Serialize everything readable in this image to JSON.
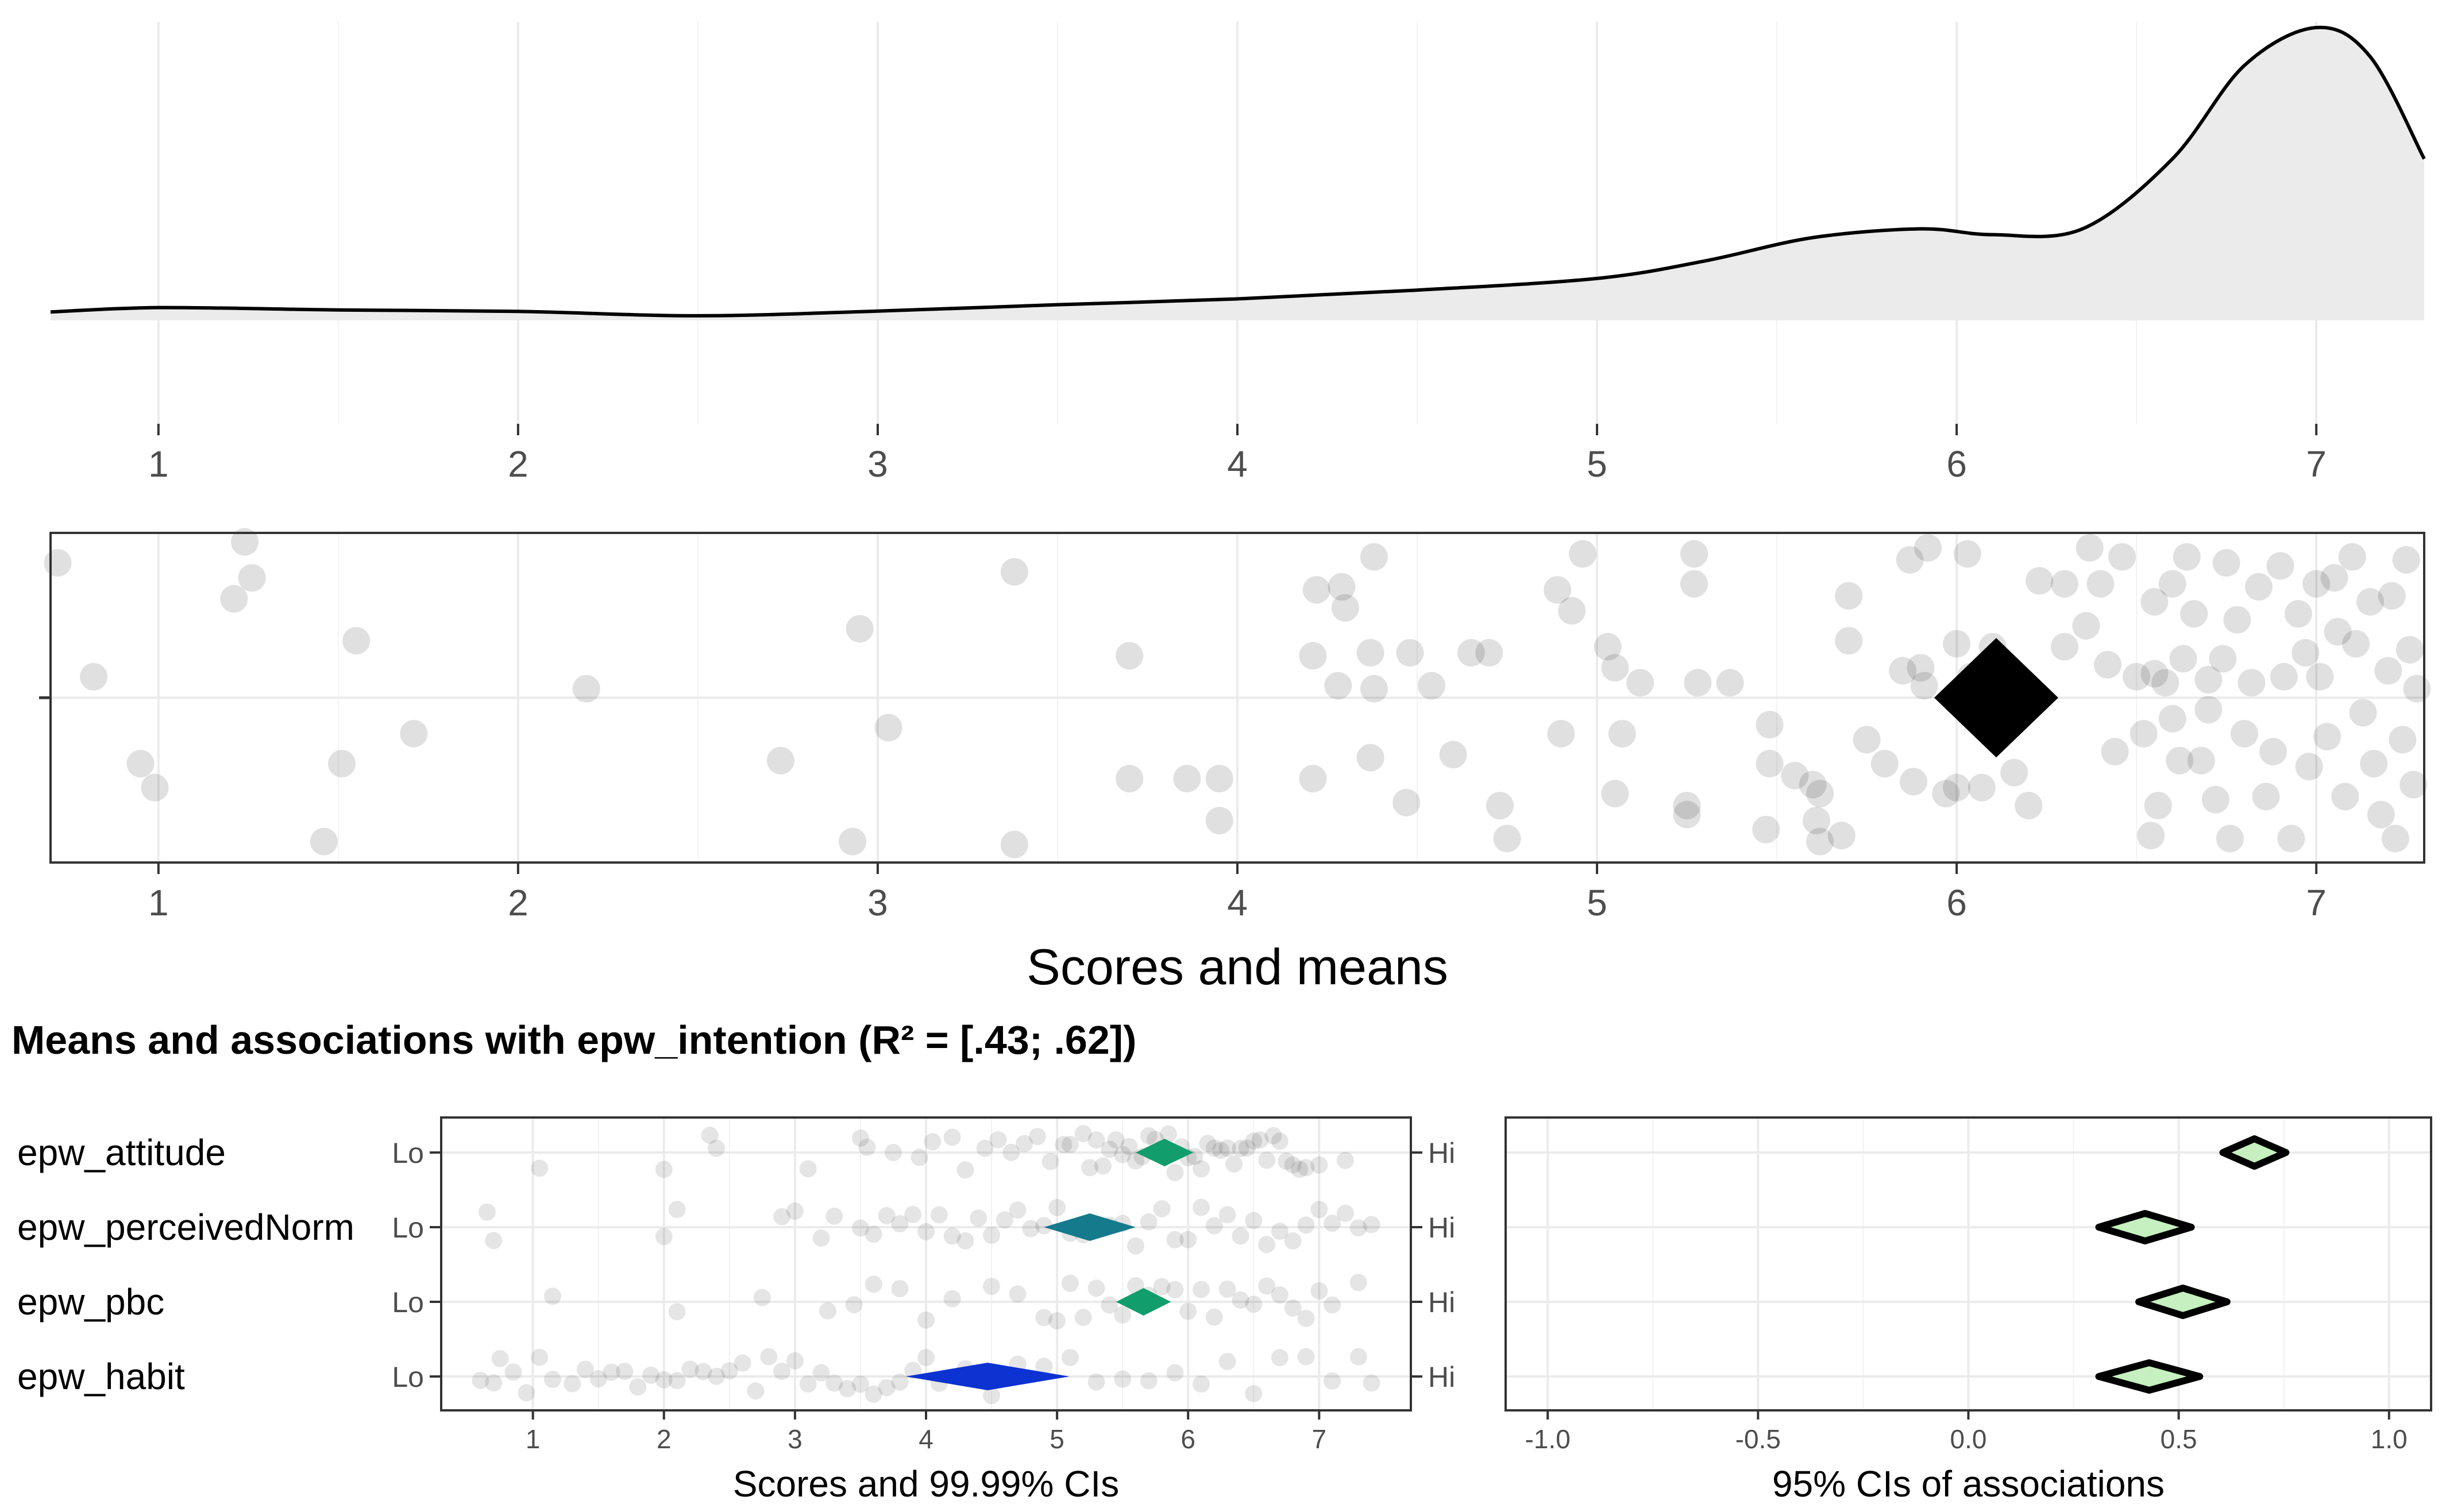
{
  "chart_data": [
    {
      "type": "area",
      "panel": "density",
      "xlim": [
        0.7,
        7.3
      ],
      "x_ticks": [
        1,
        2,
        3,
        4,
        5,
        6,
        7
      ],
      "x_tick_labels": [
        "1",
        "2",
        "3",
        "4",
        "5",
        "6",
        "7"
      ],
      "grid": true,
      "fill_color": "#ebebeb",
      "line_color": "#000000",
      "x": [
        0.7,
        1.0,
        1.5,
        2.0,
        2.5,
        3.0,
        3.5,
        4.0,
        4.5,
        5.0,
        5.3,
        5.6,
        5.9,
        6.1,
        6.35,
        6.6,
        6.8,
        7.0,
        7.15,
        7.3
      ],
      "y": [
        0.025,
        0.04,
        0.032,
        0.027,
        0.012,
        0.028,
        0.05,
        0.07,
        0.1,
        0.14,
        0.2,
        0.28,
        0.31,
        0.29,
        0.31,
        0.55,
        0.87,
        1.0,
        0.9,
        0.55
      ]
    },
    {
      "type": "scatter",
      "panel": "scores-and-means",
      "xlabel": "Scores and means",
      "xlim": [
        0.7,
        7.3
      ],
      "x_ticks": [
        1,
        2,
        3,
        4,
        5,
        6,
        7
      ],
      "x_tick_labels": [
        "1",
        "2",
        "3",
        "4",
        "5",
        "6",
        "7"
      ],
      "grid": true,
      "point_color": "#000000",
      "point_opacity": 0.12,
      "mean": 6.11,
      "points": [
        [
          0.72,
          0.45
        ],
        [
          1.24,
          0.52
        ],
        [
          1.26,
          0.4
        ],
        [
          1.21,
          0.33
        ],
        [
          0.82,
          0.07
        ],
        [
          0.95,
          -0.22
        ],
        [
          0.99,
          -0.3
        ],
        [
          1.46,
          -0.48
        ],
        [
          1.51,
          -0.22
        ],
        [
          1.55,
          0.19
        ],
        [
          1.71,
          -0.12
        ],
        [
          2.19,
          0.03
        ],
        [
          2.73,
          -0.21
        ],
        [
          2.93,
          -0.48
        ],
        [
          2.95,
          0.23
        ],
        [
          3.03,
          -0.1
        ],
        [
          3.38,
          0.42
        ],
        [
          3.38,
          -0.49
        ],
        [
          3.7,
          -0.27
        ],
        [
          3.7,
          0.14
        ],
        [
          3.86,
          -0.27
        ],
        [
          3.95,
          -0.27
        ],
        [
          3.95,
          -0.41
        ],
        [
          4.21,
          -0.27
        ],
        [
          4.21,
          0.14
        ],
        [
          4.22,
          0.36
        ],
        [
          4.29,
          0.37
        ],
        [
          4.3,
          0.3
        ],
        [
          4.28,
          0.04
        ],
        [
          4.37,
          -0.2
        ],
        [
          4.38,
          0.47
        ],
        [
          4.37,
          0.15
        ],
        [
          4.38,
          0.03
        ],
        [
          4.48,
          0.15
        ],
        [
          4.47,
          -0.35
        ],
        [
          4.54,
          0.04
        ],
        [
          4.6,
          -0.19
        ],
        [
          4.65,
          0.15
        ],
        [
          4.7,
          0.15
        ],
        [
          4.73,
          -0.36
        ],
        [
          4.75,
          -0.47
        ],
        [
          4.89,
          0.36
        ],
        [
          4.9,
          -0.12
        ],
        [
          4.93,
          0.29
        ],
        [
          4.96,
          0.48
        ],
        [
          5.03,
          0.17
        ],
        [
          5.05,
          0.1
        ],
        [
          5.05,
          -0.32
        ],
        [
          5.07,
          -0.12
        ],
        [
          5.12,
          0.05
        ],
        [
          5.25,
          -0.39
        ],
        [
          5.25,
          -0.36
        ],
        [
          5.27,
          0.38
        ],
        [
          5.27,
          0.48
        ],
        [
          5.28,
          0.05
        ],
        [
          5.37,
          0.05
        ],
        [
          5.47,
          -0.44
        ],
        [
          5.48,
          -0.09
        ],
        [
          5.48,
          -0.22
        ],
        [
          5.55,
          -0.26
        ],
        [
          5.6,
          -0.29
        ],
        [
          5.61,
          -0.41
        ],
        [
          5.62,
          -0.32
        ],
        [
          5.62,
          -0.48
        ],
        [
          5.68,
          -0.46
        ],
        [
          5.7,
          0.19
        ],
        [
          5.7,
          0.34
        ],
        [
          5.75,
          -0.14
        ],
        [
          5.8,
          -0.22
        ],
        [
          5.85,
          0.09
        ],
        [
          5.87,
          0.46
        ],
        [
          5.88,
          -0.28
        ],
        [
          5.9,
          0.1
        ],
        [
          5.91,
          0.04
        ],
        [
          5.92,
          0.5
        ],
        [
          5.97,
          -0.32
        ],
        [
          6.0,
          -0.3
        ],
        [
          6.0,
          0.18
        ],
        [
          6.03,
          0.48
        ],
        [
          6.04,
          0.07
        ],
        [
          6.07,
          -0.3
        ],
        [
          6.1,
          0.17
        ],
        [
          6.16,
          -0.25
        ],
        [
          6.2,
          -0.36
        ],
        [
          6.23,
          0.39
        ],
        [
          6.3,
          0.38
        ],
        [
          6.3,
          0.17
        ],
        [
          6.36,
          0.24
        ],
        [
          6.37,
          0.5
        ],
        [
          6.4,
          0.38
        ],
        [
          6.42,
          0.11
        ],
        [
          6.44,
          -0.18
        ],
        [
          6.46,
          0.47
        ],
        [
          6.5,
          0.07
        ],
        [
          6.52,
          -0.12
        ],
        [
          6.54,
          -0.46
        ],
        [
          6.55,
          0.32
        ],
        [
          6.55,
          0.08
        ],
        [
          6.56,
          -0.36
        ],
        [
          6.58,
          0.05
        ],
        [
          6.6,
          -0.07
        ],
        [
          6.6,
          0.38
        ],
        [
          6.62,
          -0.21
        ],
        [
          6.63,
          0.13
        ],
        [
          6.64,
          0.47
        ],
        [
          6.66,
          0.28
        ],
        [
          6.68,
          -0.21
        ],
        [
          6.7,
          0.06
        ],
        [
          6.7,
          -0.04
        ],
        [
          6.72,
          -0.34
        ],
        [
          6.74,
          0.13
        ],
        [
          6.75,
          0.45
        ],
        [
          6.76,
          -0.47
        ],
        [
          6.78,
          0.26
        ],
        [
          6.8,
          -0.12
        ],
        [
          6.82,
          0.05
        ],
        [
          6.84,
          0.37
        ],
        [
          6.86,
          -0.33
        ],
        [
          6.88,
          -0.18
        ],
        [
          6.9,
          0.44
        ],
        [
          6.91,
          0.07
        ],
        [
          6.93,
          -0.47
        ],
        [
          6.95,
          0.28
        ],
        [
          6.97,
          0.15
        ],
        [
          6.98,
          -0.23
        ],
        [
          7.0,
          0.38
        ],
        [
          7.01,
          0.07
        ],
        [
          7.03,
          -0.13
        ],
        [
          7.05,
          0.4
        ],
        [
          7.06,
          0.22
        ],
        [
          7.08,
          -0.33
        ],
        [
          7.1,
          0.47
        ],
        [
          7.11,
          0.18
        ],
        [
          7.13,
          -0.05
        ],
        [
          7.15,
          0.32
        ],
        [
          7.16,
          -0.22
        ],
        [
          7.18,
          -0.39
        ],
        [
          7.2,
          0.09
        ],
        [
          7.21,
          0.34
        ],
        [
          7.22,
          -0.47
        ],
        [
          7.24,
          -0.14
        ],
        [
          7.25,
          0.46
        ],
        [
          7.26,
          0.16
        ],
        [
          7.27,
          -0.29
        ],
        [
          7.28,
          0.03
        ]
      ]
    },
    {
      "type": "scatter",
      "panel": "scores-and-cis",
      "title": "Means and associations with epw_intention (R² = [.43; .62])",
      "xlabel": "Scores and 99.99% CIs",
      "xlim": [
        0.3,
        7.7
      ],
      "x_ticks": [
        1,
        2,
        3,
        4,
        5,
        6,
        7
      ],
      "x_tick_labels": [
        "1",
        "2",
        "3",
        "4",
        "5",
        "6",
        "7"
      ],
      "grid": true,
      "anchor_low": "Lo",
      "anchor_high": "Hi",
      "items": [
        {
          "label": "epw_attitude",
          "mean": 5.82,
          "ci": [
            5.6,
            6.04
          ],
          "color": "#119d6c",
          "points": [
            1.05,
            2.0,
            2.35,
            2.4,
            3.1,
            3.5,
            3.55,
            3.75,
            3.95,
            4.05,
            4.2,
            4.3,
            4.45,
            4.55,
            4.65,
            4.75,
            4.85,
            4.95,
            5.05,
            5.1,
            5.2,
            5.25,
            5.3,
            5.35,
            5.4,
            5.45,
            5.5,
            5.55,
            5.6,
            5.65,
            5.7,
            5.75,
            5.8,
            5.85,
            5.9,
            5.95,
            6.0,
            6.05,
            6.1,
            6.15,
            6.2,
            6.25,
            6.3,
            6.35,
            6.4,
            6.45,
            6.5,
            6.55,
            6.6,
            6.65,
            6.7,
            6.75,
            6.8,
            6.85,
            6.9,
            7.0,
            7.2
          ]
        },
        {
          "label": "epw_perceivedNorm",
          "mean": 5.25,
          "ci": [
            4.9,
            5.6
          ],
          "color": "#157a8c",
          "points": [
            0.65,
            0.7,
            2.0,
            2.1,
            2.9,
            3.0,
            3.2,
            3.3,
            3.5,
            3.6,
            3.7,
            3.8,
            3.9,
            4.0,
            4.1,
            4.2,
            4.3,
            4.4,
            4.5,
            4.6,
            4.7,
            4.8,
            4.9,
            5.0,
            5.1,
            5.2,
            5.3,
            5.4,
            5.5,
            5.6,
            5.7,
            5.8,
            5.9,
            6.0,
            6.1,
            6.2,
            6.3,
            6.4,
            6.5,
            6.6,
            6.7,
            6.8,
            6.9,
            7.0,
            7.1,
            7.2,
            7.3,
            7.4
          ]
        },
        {
          "label": "epw_pbc",
          "mean": 5.66,
          "ci": [
            5.45,
            5.87
          ],
          "color": "#119d6c",
          "points": [
            1.15,
            2.1,
            2.75,
            3.25,
            3.45,
            3.6,
            3.8,
            4.0,
            4.2,
            4.5,
            4.7,
            4.9,
            5.0,
            5.1,
            5.2,
            5.3,
            5.4,
            5.5,
            5.6,
            5.7,
            5.8,
            5.9,
            6.0,
            6.1,
            6.2,
            6.3,
            6.4,
            6.5,
            6.6,
            6.7,
            6.8,
            6.9,
            7.0,
            7.1,
            7.3
          ]
        },
        {
          "label": "epw_habit",
          "mean": 4.47,
          "ci": [
            3.85,
            5.1
          ],
          "color": "#0c32d1",
          "points": [
            0.6,
            0.7,
            0.75,
            0.85,
            0.95,
            1.05,
            1.15,
            1.3,
            1.4,
            1.5,
            1.6,
            1.7,
            1.8,
            1.9,
            2.0,
            2.1,
            2.2,
            2.3,
            2.4,
            2.5,
            2.6,
            2.7,
            2.8,
            2.9,
            3.0,
            3.1,
            3.2,
            3.3,
            3.4,
            3.5,
            3.6,
            3.7,
            3.8,
            3.9,
            4.0,
            4.1,
            4.3,
            4.5,
            4.7,
            4.9,
            5.1,
            5.3,
            5.5,
            5.7,
            5.9,
            6.1,
            6.3,
            6.5,
            6.7,
            6.9,
            7.1,
            7.3,
            7.4
          ]
        }
      ]
    },
    {
      "type": "scatter",
      "panel": "associations",
      "xlabel": "95% CIs of associations",
      "xlim": [
        -1.1,
        1.1
      ],
      "x_ticks": [
        -1.0,
        -0.5,
        0.0,
        0.5,
        1.0
      ],
      "x_tick_labels": [
        "-1.0",
        "-0.5",
        "0.0",
        "0.5",
        "1.0"
      ],
      "grid": true,
      "diamond_fill": "#c6f0bf",
      "items": [
        {
          "label": "epw_attitude",
          "estimate": 0.68,
          "ci": [
            0.6,
            0.75
          ]
        },
        {
          "label": "epw_perceivedNorm",
          "estimate": 0.42,
          "ci": [
            0.3,
            0.52
          ]
        },
        {
          "label": "epw_pbc",
          "estimate": 0.51,
          "ci": [
            0.39,
            0.6
          ]
        },
        {
          "label": "epw_habit",
          "estimate": 0.43,
          "ci": [
            0.3,
            0.54
          ]
        }
      ]
    }
  ]
}
